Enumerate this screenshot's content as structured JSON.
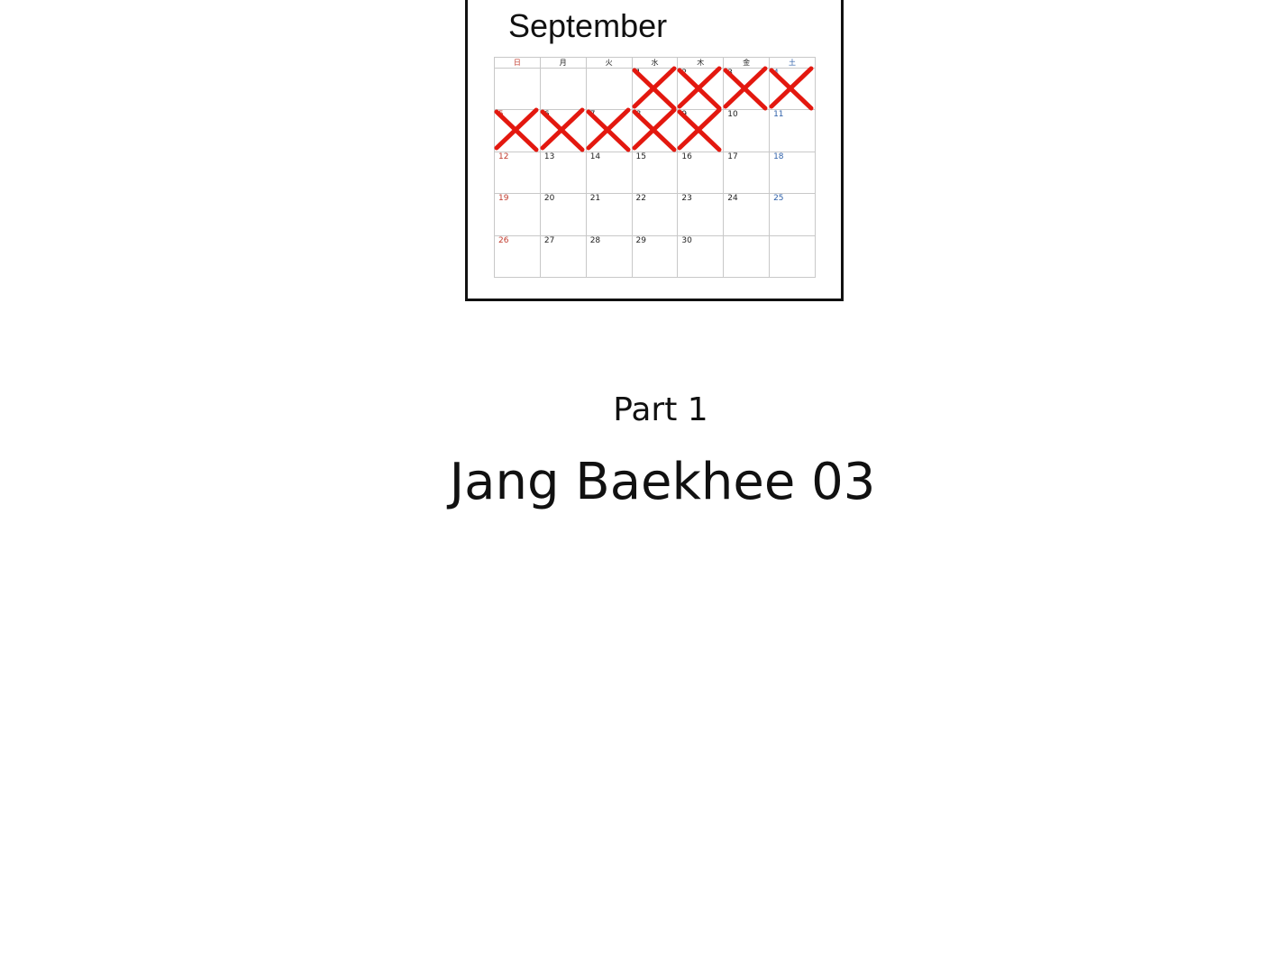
{
  "calendar": {
    "month": "September",
    "weekdays": [
      "日",
      "月",
      "火",
      "水",
      "木",
      "金",
      "土"
    ],
    "weeks": [
      [
        "",
        "",
        "",
        "1",
        "2",
        "3",
        "4"
      ],
      [
        "5",
        "6",
        "7",
        "8",
        "9",
        "10",
        "11"
      ],
      [
        "12",
        "13",
        "14",
        "15",
        "16",
        "17",
        "18"
      ],
      [
        "19",
        "20",
        "21",
        "22",
        "23",
        "24",
        "25"
      ],
      [
        "26",
        "27",
        "28",
        "29",
        "30",
        "",
        ""
      ]
    ],
    "crossed_days": [
      "1",
      "2",
      "3",
      "4",
      "5",
      "6",
      "7",
      "8",
      "9"
    ],
    "cross_color": "#e3180f"
  },
  "part": "Part 1",
  "title": "Jang Baekhee 03"
}
